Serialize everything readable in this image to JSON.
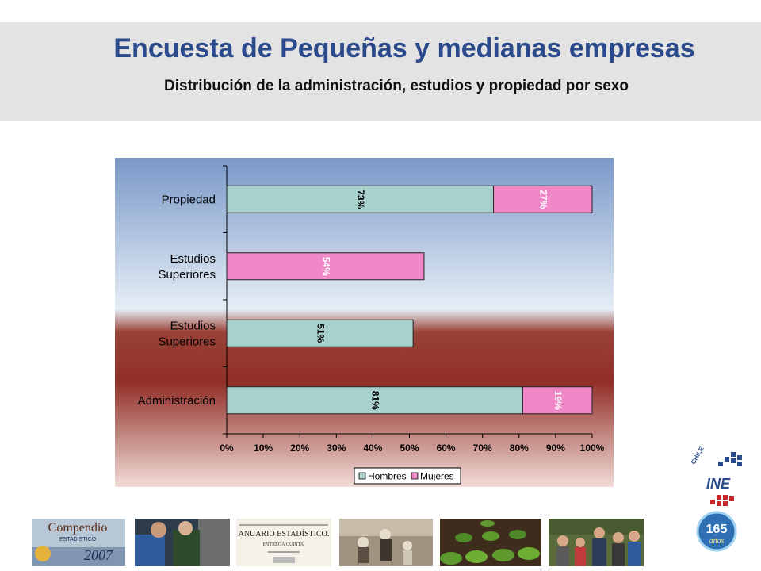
{
  "header": {
    "title": "Encuesta de Pequeñas y medianas empresas",
    "subtitle": "Distribución de la administración, estudios y propiedad por sexo"
  },
  "chart_data": {
    "type": "bar",
    "orientation": "horizontal",
    "stacked": true,
    "categories": [
      "Propiedad",
      "Estudios Superiores",
      "Estudios Superiores",
      "Administración"
    ],
    "series": [
      {
        "name": "Hombres",
        "color": "#a8d0cc",
        "values": [
          73,
          null,
          51,
          81
        ]
      },
      {
        "name": "Mujeres",
        "color": "#f088c8",
        "values": [
          27,
          54,
          null,
          19
        ]
      }
    ],
    "data_labels": [
      [
        "73%",
        "27%"
      ],
      [
        "",
        "54%"
      ],
      [
        "51%",
        ""
      ],
      [
        "81%",
        "19%"
      ]
    ],
    "xticks": [
      "0%",
      "10%",
      "20%",
      "30%",
      "40%",
      "50%",
      "60%",
      "70%",
      "80%",
      "90%",
      "100%"
    ],
    "xlim": [
      0,
      100
    ],
    "legend_position": "bottom",
    "grid": false
  },
  "logo": {
    "country": "CHILE",
    "acronym": "INE",
    "anniversary": "165",
    "anniversary_word": "años"
  },
  "thumbnails": {
    "compendio_line1": "Compendio",
    "compendio_line2": "ESTADISTICO",
    "compendio_year": "2007",
    "anuario_title": "ANUARIO ESTADÍSTICO.",
    "anuario_sub": "ENTREGA QUINTA."
  }
}
